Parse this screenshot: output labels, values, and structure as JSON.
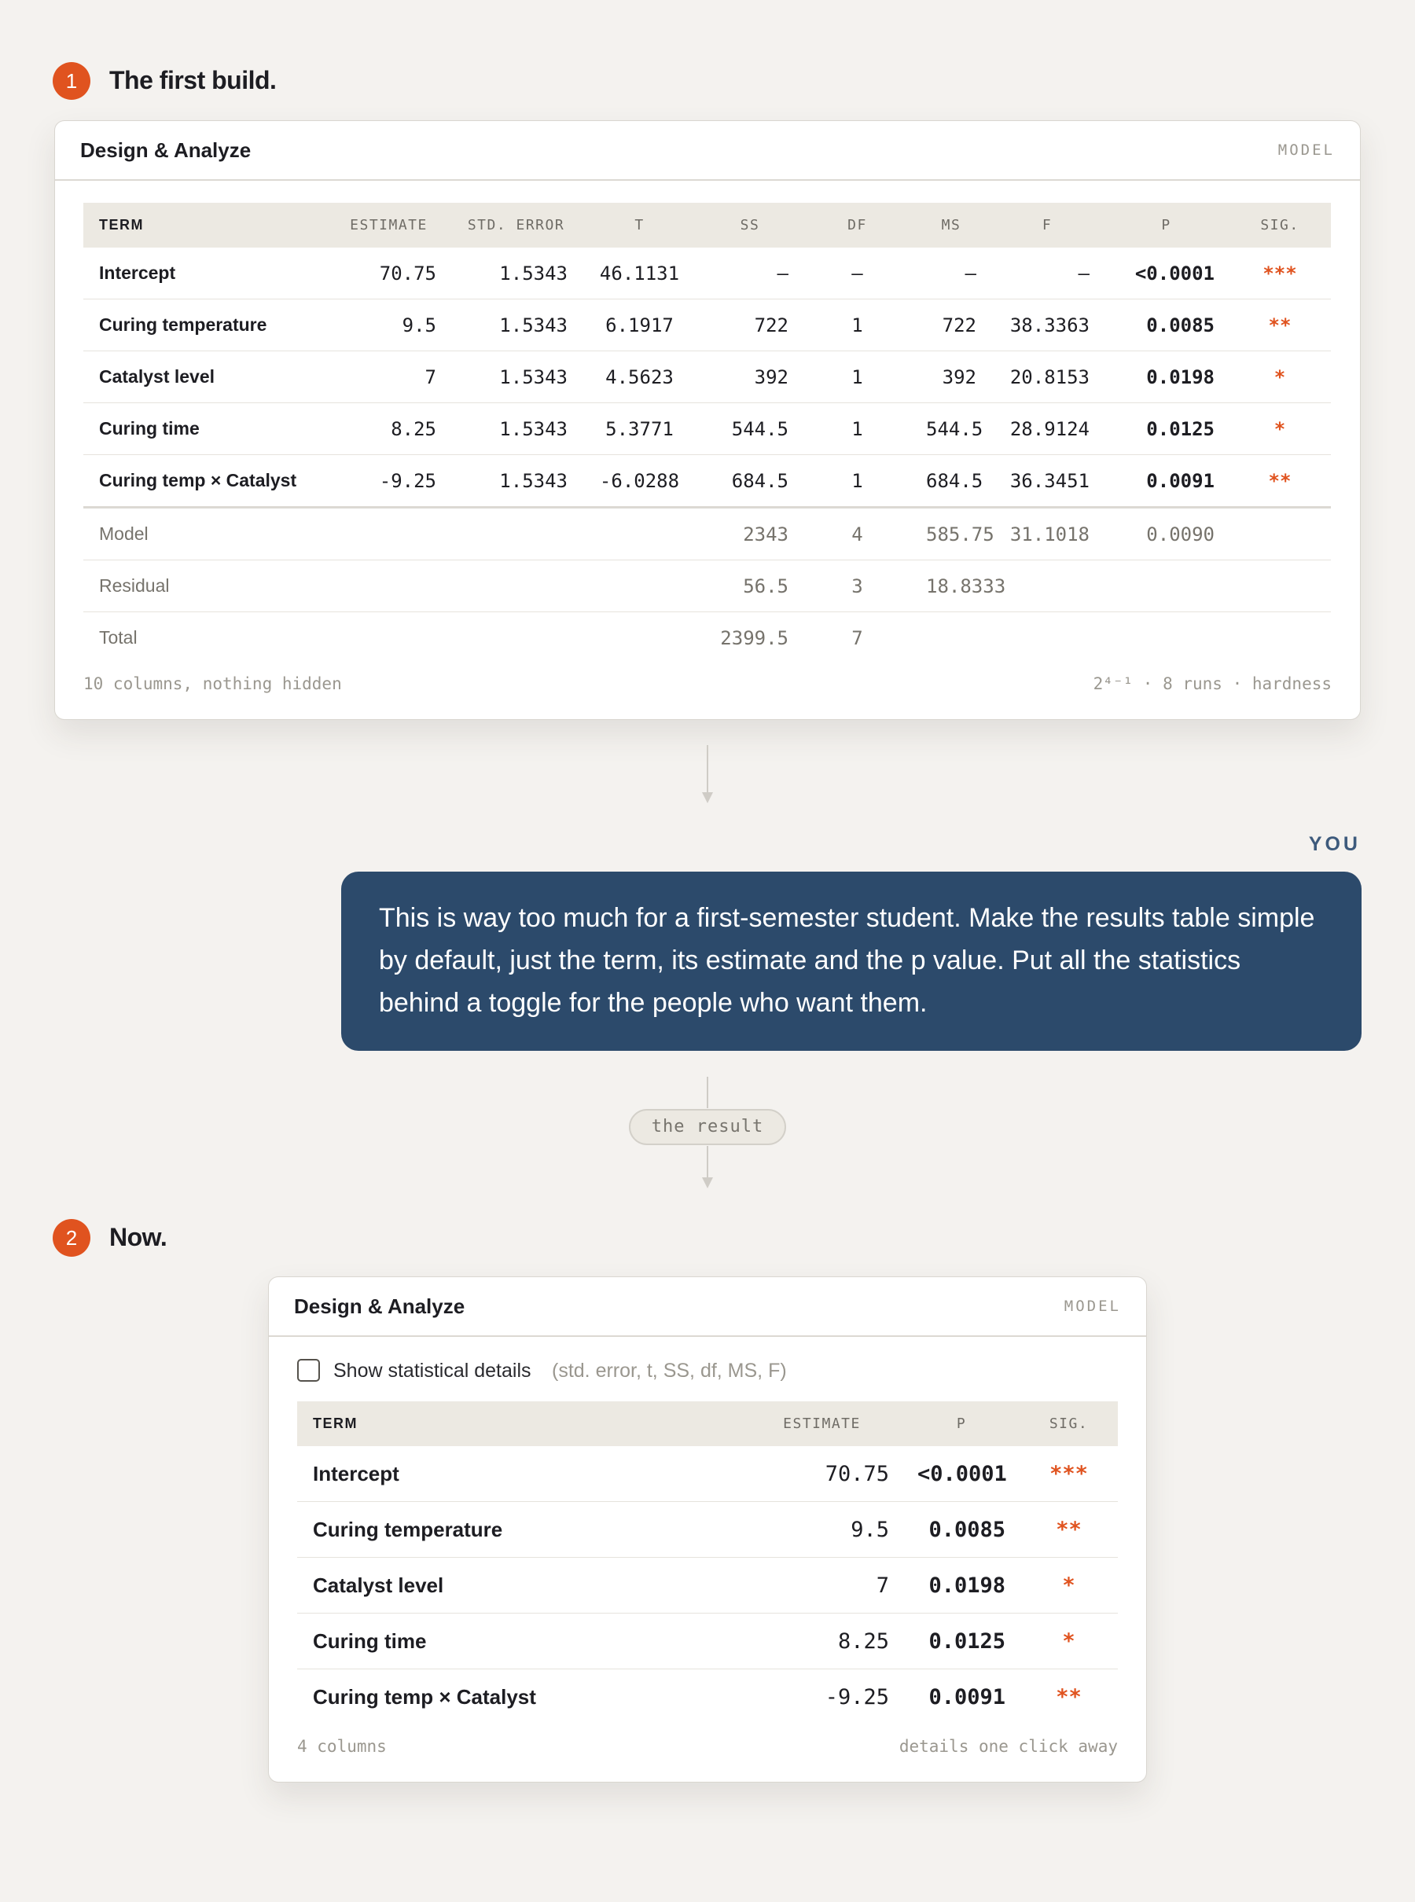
{
  "step_one": {
    "badge": "1",
    "title": "The first build."
  },
  "first_build": {
    "title": "Design & Analyze",
    "tag": "MODEL",
    "columns": [
      "TERM",
      "ESTIMATE",
      "STD. ERROR",
      "T",
      "SS",
      "DF",
      "MS",
      "F",
      "P",
      "SIG."
    ],
    "rows": [
      [
        "Intercept",
        "70.75",
        "1.5343",
        "46.1131",
        "—",
        "—",
        "—",
        "—",
        "<0.0001",
        "***"
      ],
      [
        "Curing temperature",
        "9.5",
        "1.5343",
        "6.1917",
        "722",
        "1",
        "722",
        "38.3363",
        "0.0085",
        "**"
      ],
      [
        "Catalyst level",
        "7",
        "1.5343",
        "4.5623",
        "392",
        "1",
        "392",
        "20.8153",
        "0.0198",
        "*"
      ],
      [
        "Curing time",
        "8.25",
        "1.5343",
        "5.3771",
        "544.5",
        "1",
        "544.5",
        "28.9124",
        "0.0125",
        "*"
      ],
      [
        "Curing temp × Catalyst",
        "-9.25",
        "1.5343",
        "-6.0288",
        "684.5",
        "1",
        "684.5",
        "36.3451",
        "0.0091",
        "**"
      ]
    ],
    "summary_rows": [
      {
        "term": "Model",
        "ss": "2343",
        "df": "4",
        "ms": "585.75",
        "f": "31.1018",
        "p": "0.0090"
      },
      {
        "term": "Residual",
        "ss": "56.5",
        "df": "3",
        "ms": "18.8333"
      },
      {
        "term": "Total",
        "ss": "2399.5",
        "df": "7"
      }
    ],
    "footer_left": "10 columns, nothing hidden",
    "footer_right": "2⁴⁻¹ · 8 runs · hardness"
  },
  "message": {
    "author": "YOU",
    "text": "This is way too much for a first-semester student. Make the results table simple by default, just the term, its estimate and the p value. Put all the statistics behind a toggle for the people who want them."
  },
  "connector_label": "the result",
  "step_two": {
    "badge": "2",
    "title": "Now."
  },
  "now": {
    "title": "Design & Analyze",
    "tag": "MODEL",
    "toggle_label": "Show statistical details",
    "toggle_hint": "(std. error, t, SS, df, MS, F)",
    "columns": [
      "TERM",
      "ESTIMATE",
      "P",
      "SIG."
    ],
    "rows": [
      [
        "Intercept",
        "70.75",
        "<0.0001",
        "***"
      ],
      [
        "Curing temperature",
        "9.5",
        "0.0085",
        "**"
      ],
      [
        "Catalyst level",
        "7",
        "0.0198",
        "*"
      ],
      [
        "Curing time",
        "8.25",
        "0.0125",
        "*"
      ],
      [
        "Curing temp × Catalyst",
        "-9.25",
        "0.0091",
        "**"
      ]
    ],
    "footer_left": "4 columns",
    "footer_right": "details one click away"
  }
}
